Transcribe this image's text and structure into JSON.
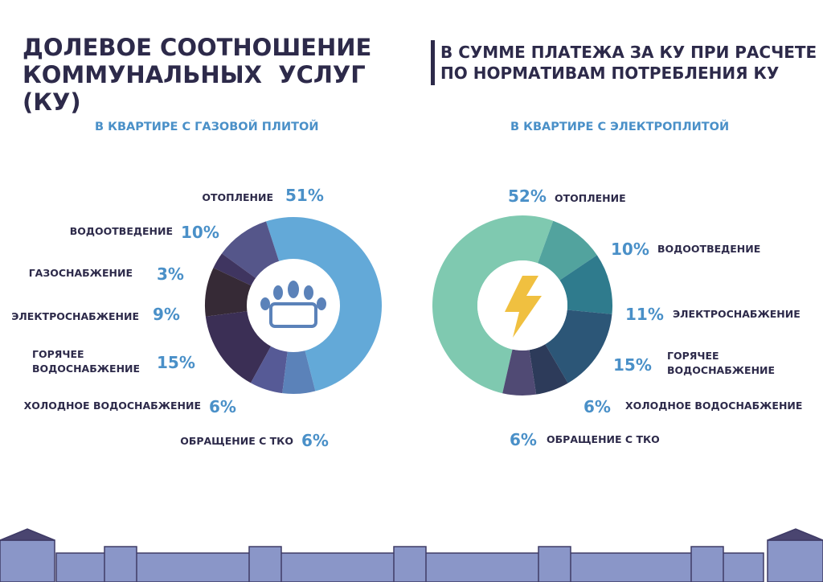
{
  "header": {
    "title": "ДОЛЕВОЕ СООТНОШЕНИЕ КОММУНАЛЬНЫХ  УСЛУГ (КУ)",
    "subtitle": "В СУММЕ ПЛАТЕЖА ЗА КУ ПРИ РАСЧЕТЕ ПО НОРМАТИВАМ ПОТРЕБЛЕНИЯ КУ"
  },
  "chart_data": [
    {
      "type": "donut",
      "title": "В КВАРТИРЕ С ГАЗОВОЙ ПЛИТОЙ",
      "categories": [
        "ОТОПЛЕНИЕ",
        "ВОДООТВЕДЕНИЕ",
        "ГАЗОСНАБЖЕНИЕ",
        "ЭЛЕКТРОСНАБЖЕНИЕ",
        "ГОРЯЧЕЕ ВОДОСНАБЖЕНИЕ",
        "ХОЛОДНОЕ ВОДОСНАБЖЕНИЕ",
        "ОБРАЩЕНИЕ С ТКО"
      ],
      "values": [
        51,
        10,
        3,
        9,
        15,
        6,
        6
      ],
      "value_labels": [
        "51%",
        "10%",
        "3%",
        "9%",
        "15%",
        "6%",
        "6%"
      ],
      "colors": [
        "#63a9d8",
        "#55568a",
        "#3f3560",
        "#362a36",
        "#3b2f55",
        "#565a96",
        "#5b82b9"
      ]
    },
    {
      "type": "donut",
      "title": "В КВАРТИРЕ С ЭЛЕКТРОПЛИТОЙ",
      "categories": [
        "ОТОПЛЕНИЕ",
        "ВОДООТВЕДЕНИЕ",
        "ЭЛЕКТРОСНАБЖЕНИЕ",
        "ГОРЯЧЕЕ ВОДОСНАБЖЕНИЕ",
        "ХОЛОДНОЕ ВОДОСНАБЖЕНИЕ",
        "ОБРАЩЕНИЕ С ТКО"
      ],
      "values": [
        52,
        10,
        11,
        15,
        6,
        6
      ],
      "value_labels": [
        "52%",
        "10%",
        "11%",
        "15%",
        "6%",
        "6%"
      ],
      "colors": [
        "#7fc9b0",
        "#52a39e",
        "#2f7b8d",
        "#2c5677",
        "#2d3b5a",
        "#504a74"
      ]
    }
  ]
}
